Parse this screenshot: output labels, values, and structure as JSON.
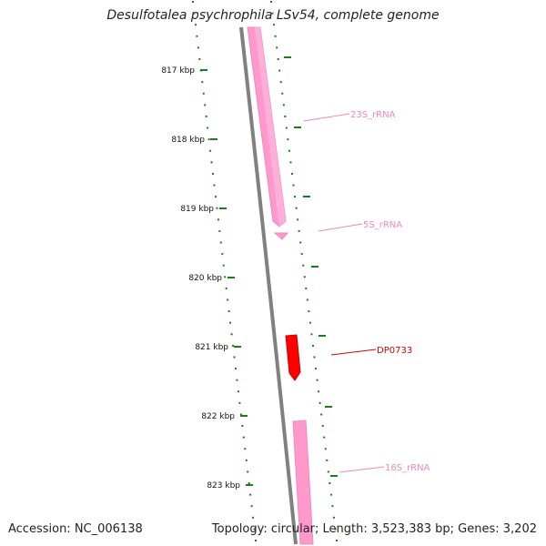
{
  "title": "Desulfotalea psychrophila LSv54, complete genome",
  "footer": {
    "accession": "Accession: NC_006138",
    "summary": "Topology: circular; Length: 3,523,383 bp; Genes: 3,202"
  },
  "ticks": [
    {
      "label": "817 kbp"
    },
    {
      "label": "818 kbp"
    },
    {
      "label": "819 kbp"
    },
    {
      "label": "820 kbp"
    },
    {
      "label": "821 kbp"
    },
    {
      "label": "822 kbp"
    },
    {
      "label": "823 kbp"
    }
  ],
  "features": [
    {
      "name": "23S_rRNA",
      "color": "#ef88bb"
    },
    {
      "name": "5S_rRNA",
      "color": "#ef88bb"
    },
    {
      "name": "DP0733",
      "color": "#dd0000"
    },
    {
      "name": "16S_rRNA",
      "color": "#ef88bb"
    }
  ],
  "colors": {
    "backbone": "#808080",
    "gc_skew": "#1e7a1e",
    "rrna": "#ff99cc",
    "cds": "#ff0000"
  }
}
